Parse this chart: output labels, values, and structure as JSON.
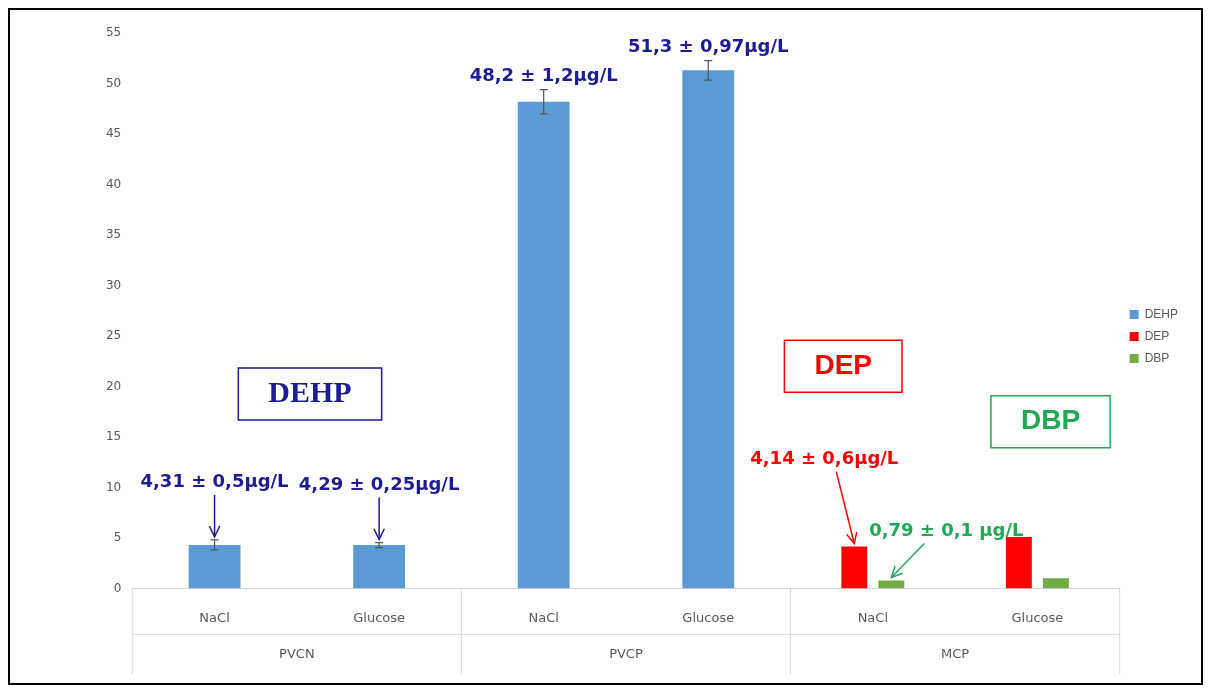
{
  "chart_data": {
    "type": "bar",
    "categories": [
      "NaCl",
      "Glucose",
      "NaCl",
      "Glucose",
      "NaCl",
      "Glucose"
    ],
    "series": [
      {
        "name": "DEHP",
        "color": "#5b9bd5",
        "values": [
          4.31,
          4.29,
          48.2,
          51.3,
          null,
          null
        ],
        "errors": [
          0.5,
          0.25,
          1.2,
          0.97,
          null,
          null
        ],
        "value_labels": [
          "4,31 ± 0,5µg/L",
          "4,29 ± 0,25µg/L",
          "48,2 ± 1,2µg/L",
          "51,3 ± 0,97µg/L",
          null,
          null
        ]
      },
      {
        "name": "DEP",
        "color": "#ff0000",
        "values": [
          null,
          null,
          null,
          null,
          4.14,
          5.1
        ],
        "value_labels": [
          null,
          null,
          null,
          null,
          "4,14 ± 0,6µg/L",
          null
        ]
      },
      {
        "name": "DBP",
        "color": "#70ad47",
        "values": [
          null,
          null,
          null,
          null,
          0.79,
          1.0
        ],
        "value_labels": [
          null,
          null,
          null,
          null,
          "0,79 ± 0,1 µg/L",
          null
        ]
      }
    ],
    "annotations": [
      "DEHP",
      "DEP",
      "DBP",
      "PVCN",
      "PVCP",
      "MCP"
    ],
    "ylim": [
      0,
      55
    ],
    "yticks": [
      0,
      5,
      10,
      15,
      20,
      25,
      30,
      35,
      40,
      45,
      50,
      55
    ],
    "legend": "right"
  }
}
